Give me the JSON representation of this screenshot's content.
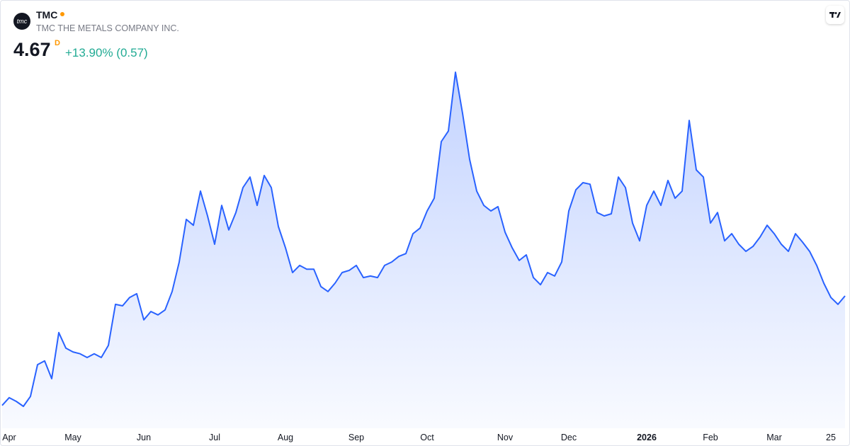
{
  "header": {
    "logo": "tmc",
    "symbol": "TMC",
    "name": "TMC THE METALS COMPANY INC.",
    "price": 4.67,
    "interval": "D",
    "change": "+13.90% (0.57)"
  },
  "chart_data": {
    "type": "area",
    "color": "#2962ff",
    "categories": [
      null,
      "Apr",
      null,
      null,
      null,
      null,
      null,
      null,
      null,
      null,
      "May",
      null,
      null,
      null,
      null,
      null,
      null,
      null,
      null,
      null,
      "Jun",
      null,
      null,
      null,
      null,
      null,
      null,
      null,
      null,
      null,
      "Jul",
      null,
      null,
      null,
      null,
      null,
      null,
      null,
      null,
      null,
      "Aug",
      null,
      null,
      null,
      null,
      null,
      null,
      null,
      null,
      null,
      "Sep",
      null,
      null,
      null,
      null,
      null,
      null,
      null,
      null,
      null,
      "Oct",
      null,
      null,
      null,
      null,
      null,
      null,
      null,
      null,
      null,
      null,
      "Nov",
      null,
      null,
      null,
      null,
      null,
      null,
      null,
      null,
      "Dec",
      null,
      null,
      null,
      null,
      null,
      null,
      null,
      null,
      null,
      null,
      "2026",
      null,
      null,
      null,
      null,
      null,
      null,
      null,
      null,
      "Feb",
      null,
      null,
      null,
      null,
      null,
      null,
      null,
      null,
      "Mar",
      null,
      null,
      null,
      null,
      null,
      null,
      null,
      "25",
      null,
      null
    ],
    "values": [
      1.15,
      1.4,
      1.28,
      1.12,
      1.44,
      2.46,
      2.58,
      2.01,
      3.49,
      2.99,
      2.87,
      2.81,
      2.69,
      2.81,
      2.69,
      3.08,
      4.4,
      4.35,
      4.62,
      4.74,
      3.9,
      4.17,
      4.06,
      4.22,
      4.81,
      5.76,
      7.13,
      6.94,
      8.04,
      7.24,
      6.33,
      7.58,
      6.79,
      7.35,
      8.15,
      8.49,
      7.58,
      8.54,
      8.15,
      6.9,
      6.22,
      5.42,
      5.65,
      5.53,
      5.53,
      4.97,
      4.81,
      5.08,
      5.42,
      5.49,
      5.65,
      5.26,
      5.31,
      5.26,
      5.65,
      5.76,
      5.94,
      6.03,
      6.67,
      6.85,
      7.4,
      7.81,
      9.63,
      9.97,
      11.86,
      10.54,
      9.06,
      8.04,
      7.58,
      7.4,
      7.54,
      6.72,
      6.22,
      5.81,
      5.99,
      5.26,
      5.03,
      5.42,
      5.31,
      5.76,
      7.4,
      8.08,
      8.31,
      8.26,
      7.35,
      7.24,
      7.31,
      8.49,
      8.15,
      7.01,
      6.44,
      7.58,
      8.04,
      7.58,
      8.38,
      7.81,
      8.04,
      10.31,
      8.72,
      8.49,
      7.01,
      7.35,
      6.44,
      6.67,
      6.33,
      6.1,
      6.26,
      6.56,
      6.94,
      6.67,
      6.33,
      6.1,
      6.67,
      6.4,
      6.1,
      5.65,
      5.08,
      4.62,
      4.4,
      4.67
    ]
  }
}
